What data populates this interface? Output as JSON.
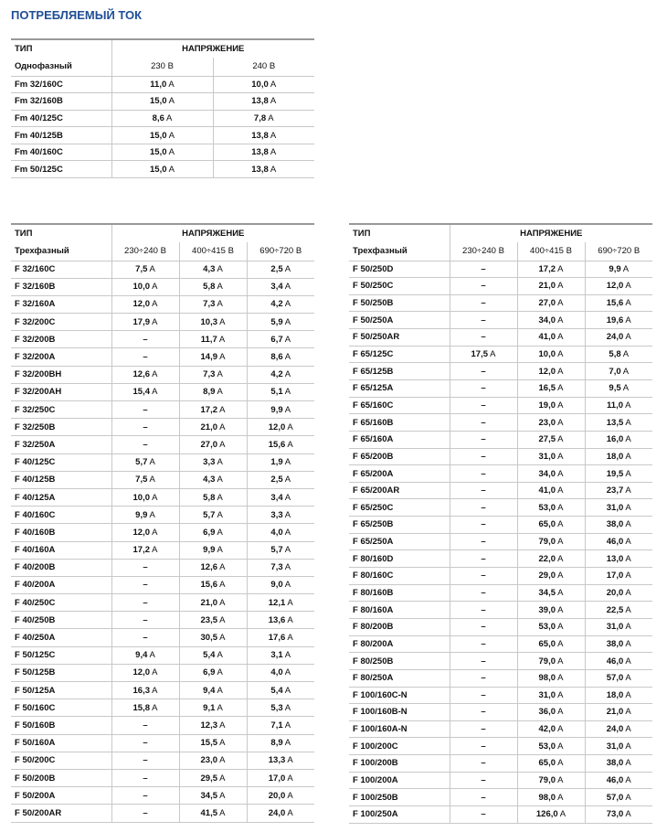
{
  "title": "ПОТРЕБЛЯЕМЫЙ ТОК",
  "tables": [
    {
      "header": {
        "type": "ТИП",
        "voltage": "НАПРЯЖЕНИЕ",
        "phase": "Однофазный",
        "columns": [
          "230 В",
          "240 В"
        ]
      },
      "rows": [
        [
          "Fm 32/160C",
          "11,0 A",
          "10,0 A"
        ],
        [
          "Fm 32/160B",
          "15,0 A",
          "13,8 A"
        ],
        [
          "Fm 40/125C",
          "8,6 A",
          "7,8 A"
        ],
        [
          "Fm 40/125B",
          "15,0 A",
          "13,8 A"
        ],
        [
          "Fm 40/160C",
          "15,0 A",
          "13,8 A"
        ],
        [
          "Fm 50/125C",
          "15,0 A",
          "13,8 A"
        ]
      ]
    },
    {
      "header": {
        "type": "ТИП",
        "voltage": "НАПРЯЖЕНИЕ",
        "phase": "Трехфазный",
        "columns": [
          "230÷240 В",
          "400÷415 В",
          "690÷720 В"
        ]
      },
      "rows": [
        [
          "F 32/160C",
          "7,5 A",
          "4,3 A",
          "2,5 A"
        ],
        [
          "F 32/160B",
          "10,0 A",
          "5,8 A",
          "3,4 A"
        ],
        [
          "F 32/160A",
          "12,0 A",
          "7,3 A",
          "4,2 A"
        ],
        [
          "F 32/200C",
          "17,9 A",
          "10,3 A",
          "5,9 A"
        ],
        [
          "F 32/200B",
          "–",
          "11,7 A",
          "6,7 A"
        ],
        [
          "F 32/200A",
          "–",
          "14,9 A",
          "8,6 A"
        ],
        [
          "F 32/200BH",
          "12,6 A",
          "7,3 A",
          "4,2 A"
        ],
        [
          "F 32/200AH",
          "15,4 A",
          "8,9 A",
          "5,1 A"
        ],
        [
          "F 32/250C",
          "–",
          "17,2 A",
          "9,9 A"
        ],
        [
          "F 32/250B",
          "–",
          "21,0 A",
          "12,0 A"
        ],
        [
          "F 32/250A",
          "–",
          "27,0 A",
          "15,6 A"
        ],
        [
          "F 40/125C",
          "5,7 A",
          "3,3 A",
          "1,9 A"
        ],
        [
          "F 40/125B",
          "7,5 A",
          "4,3 A",
          "2,5 A"
        ],
        [
          "F 40/125A",
          "10,0 A",
          "5,8 A",
          "3,4 A"
        ],
        [
          "F 40/160C",
          "9,9 A",
          "5,7 A",
          "3,3 A"
        ],
        [
          "F 40/160B",
          "12,0 A",
          "6,9 A",
          "4,0 A"
        ],
        [
          "F 40/160A",
          "17,2 A",
          "9,9 A",
          "5,7 A"
        ],
        [
          "F 40/200B",
          "–",
          "12,6 A",
          "7,3 A"
        ],
        [
          "F 40/200A",
          "–",
          "15,6 A",
          "9,0 A"
        ],
        [
          "F 40/250C",
          "–",
          "21,0 A",
          "12,1 A"
        ],
        [
          "F 40/250B",
          "–",
          "23,5 A",
          "13,6 A"
        ],
        [
          "F 40/250A",
          "–",
          "30,5 A",
          "17,6 A"
        ],
        [
          "F 50/125C",
          "9,4 A",
          "5,4 A",
          "3,1 A"
        ],
        [
          "F 50/125B",
          "12,0 A",
          "6,9 A",
          "4,0 A"
        ],
        [
          "F 50/125A",
          "16,3 A",
          "9,4 A",
          "5,4 A"
        ],
        [
          "F 50/160C",
          "15,8 A",
          "9,1 A",
          "5,3 A"
        ],
        [
          "F 50/160B",
          "–",
          "12,3 A",
          "7,1 A"
        ],
        [
          "F 50/160A",
          "–",
          "15,5 A",
          "8,9 A"
        ],
        [
          "F 50/200C",
          "–",
          "23,0 A",
          "13,3 A"
        ],
        [
          "F 50/200B",
          "–",
          "29,5 A",
          "17,0 A"
        ],
        [
          "F 50/200A",
          "–",
          "34,5 A",
          "20,0 A"
        ],
        [
          "F 50/200AR",
          "–",
          "41,5 A",
          "24,0 A"
        ]
      ]
    },
    {
      "header": {
        "type": "ТИП",
        "voltage": "НАПРЯЖЕНИЕ",
        "phase": "Трехфазный",
        "columns": [
          "230÷240 В",
          "400÷415 В",
          "690÷720 В"
        ]
      },
      "rows": [
        [
          "F 50/250D",
          "–",
          "17,2 A",
          "9,9 A"
        ],
        [
          "F 50/250C",
          "–",
          "21,0 A",
          "12,0 A"
        ],
        [
          "F 50/250B",
          "–",
          "27,0 A",
          "15,6 A"
        ],
        [
          "F 50/250A",
          "–",
          "34,0 A",
          "19,6 A"
        ],
        [
          "F 50/250AR",
          "–",
          "41,0 A",
          "24,0 A"
        ],
        [
          "F 65/125C",
          "17,5 A",
          "10,0 A",
          "5,8 A"
        ],
        [
          "F 65/125B",
          "–",
          "12,0 A",
          "7,0 A"
        ],
        [
          "F 65/125A",
          "–",
          "16,5 A",
          "9,5 A"
        ],
        [
          "F 65/160C",
          "–",
          "19,0 A",
          "11,0 A"
        ],
        [
          "F 65/160B",
          "–",
          "23,0 A",
          "13,5 A"
        ],
        [
          "F 65/160A",
          "–",
          "27,5 A",
          "16,0 A"
        ],
        [
          "F 65/200B",
          "–",
          "31,0 A",
          "18,0 A"
        ],
        [
          "F 65/200A",
          "–",
          "34,0 A",
          "19,5 A"
        ],
        [
          "F 65/200AR",
          "–",
          "41,0 A",
          "23,7 A"
        ],
        [
          "F 65/250C",
          "–",
          "53,0 A",
          "31,0 A"
        ],
        [
          "F 65/250B",
          "–",
          "65,0 A",
          "38,0 A"
        ],
        [
          "F 65/250A",
          "–",
          "79,0 A",
          "46,0 A"
        ],
        [
          "F 80/160D",
          "–",
          "22,0 A",
          "13,0 A"
        ],
        [
          "F 80/160C",
          "–",
          "29,0 A",
          "17,0 A"
        ],
        [
          "F 80/160B",
          "–",
          "34,5 A",
          "20,0 A"
        ],
        [
          "F 80/160A",
          "–",
          "39,0 A",
          "22,5 A"
        ],
        [
          "F 80/200B",
          "–",
          "53,0 A",
          "31,0 A"
        ],
        [
          "F 80/200A",
          "–",
          "65,0 A",
          "38,0 A"
        ],
        [
          "F 80/250B",
          "–",
          "79,0 A",
          "46,0 A"
        ],
        [
          "F 80/250A",
          "–",
          "98,0 A",
          "57,0 A"
        ],
        [
          "F 100/160C-N",
          "–",
          "31,0 A",
          "18,0 A"
        ],
        [
          "F 100/160B-N",
          "–",
          "36,0 A",
          "21,0 A"
        ],
        [
          "F 100/160A-N",
          "–",
          "42,0 A",
          "24,0 A"
        ],
        [
          "F 100/200C",
          "–",
          "53,0 A",
          "31,0 A"
        ],
        [
          "F 100/200B",
          "–",
          "65,0 A",
          "38,0 A"
        ],
        [
          "F 100/200A",
          "–",
          "79,0 A",
          "46,0 A"
        ],
        [
          "F 100/250B",
          "–",
          "98,0 A",
          "57,0 A"
        ],
        [
          "F 100/250A",
          "–",
          "126,0 A",
          "73,0 A"
        ]
      ]
    }
  ]
}
